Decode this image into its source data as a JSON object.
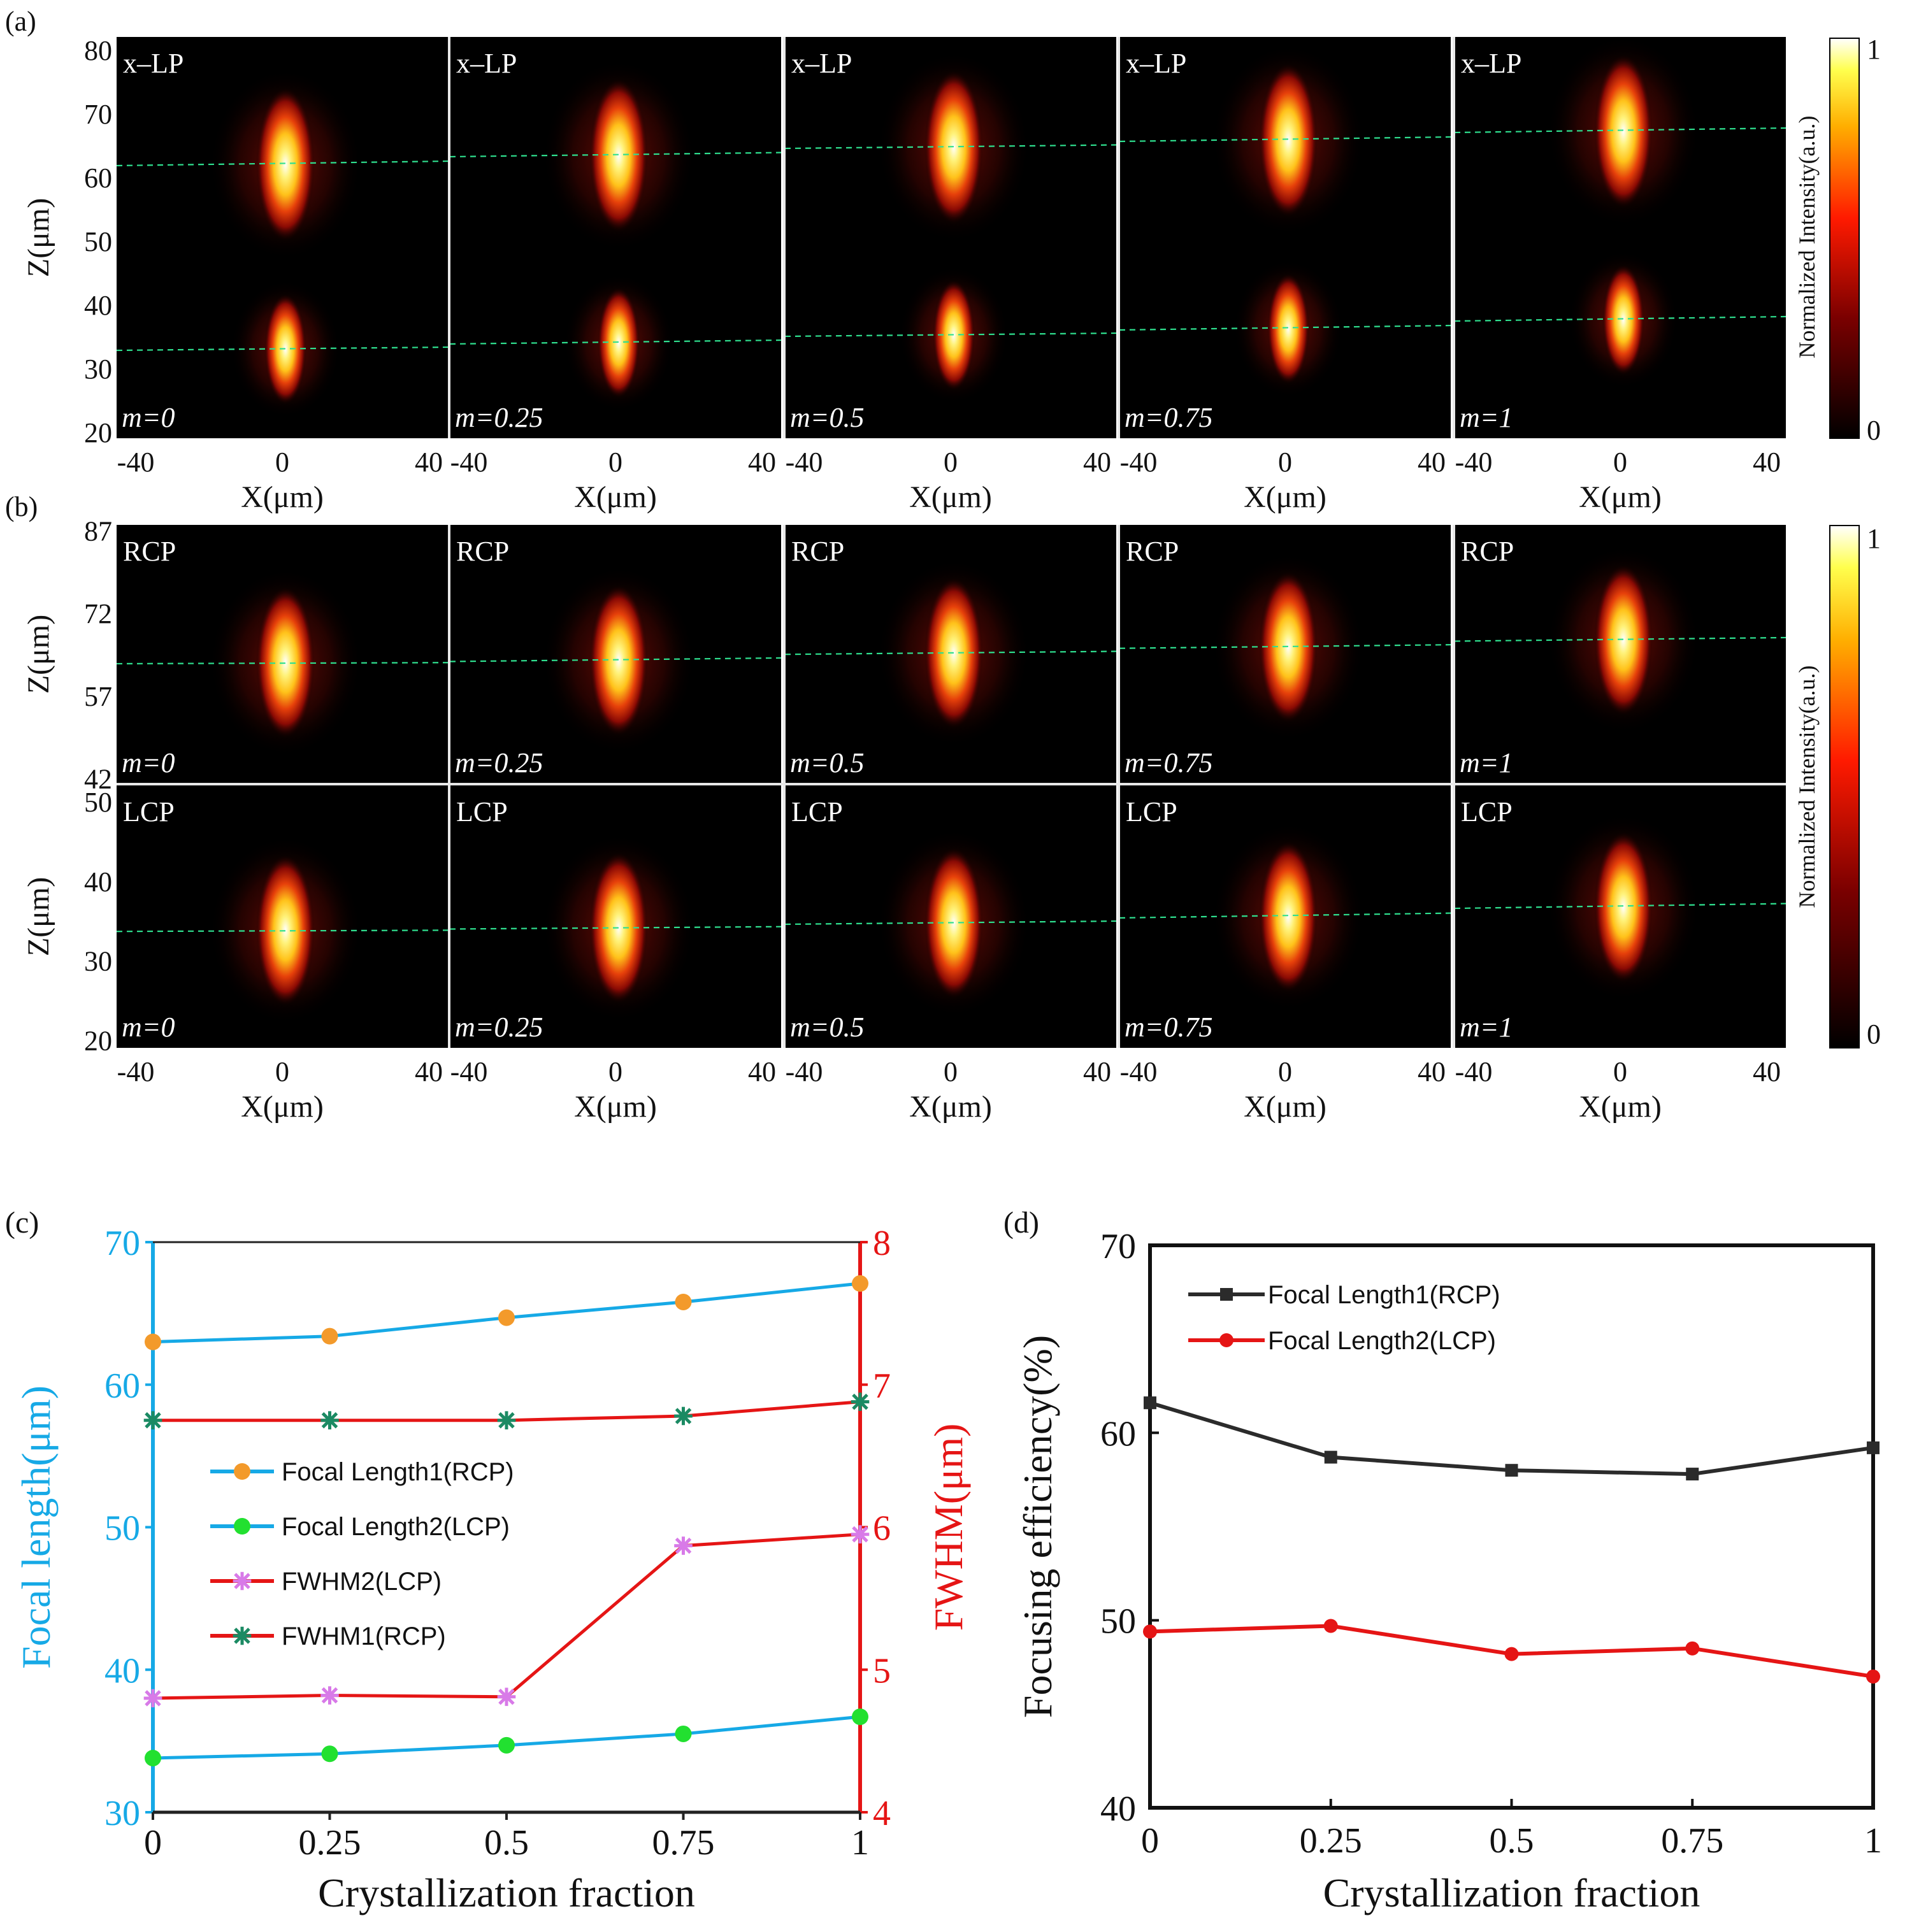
{
  "figure": {
    "panel_labels": {
      "a": "(a)",
      "b": "(b)",
      "c": "(c)",
      "d": "(d)"
    }
  },
  "colors": {
    "cyan": "#16a9e6",
    "red": "#e51515",
    "dark": "#2b2b2b",
    "orange": "#f39a2b",
    "green": "#22e030",
    "violet": "#d87ae8",
    "teal": "#1b8a63",
    "dashed": "#2fe08f",
    "text": "#111111",
    "white": "#ffffff"
  },
  "chart_data": [
    {
      "id": "a",
      "type": "heatmap",
      "polarization": "x–LP",
      "panels": [
        {
          "m_label": "m=0",
          "m": 0,
          "foci_z": [
            62.0,
            33.0
          ]
        },
        {
          "m_label": "m=0.25",
          "m": 0.25,
          "foci_z": [
            63.4,
            34.0
          ]
        },
        {
          "m_label": "m=0.5",
          "m": 0.5,
          "foci_z": [
            64.7,
            35.2
          ]
        },
        {
          "m_label": "m=0.75",
          "m": 0.75,
          "foci_z": [
            65.8,
            36.2
          ]
        },
        {
          "m_label": "m=1",
          "m": 1,
          "foci_z": [
            67.2,
            37.6
          ]
        }
      ],
      "xlabel": "X(μm)",
      "ylabel": "Z(μm)",
      "x_ticks": [
        "-40",
        "0",
        "40"
      ],
      "y_ticks": [
        "20",
        "30",
        "40",
        "50",
        "60",
        "70",
        "80"
      ],
      "xlim": [
        -45,
        45
      ],
      "ylim": [
        19,
        82
      ],
      "colorbar": {
        "label": "Normalized Intensity(a.u.)",
        "min_label": "0",
        "max_label": "1"
      }
    },
    {
      "id": "b-top",
      "type": "heatmap",
      "polarization": "RCP",
      "panels": [
        {
          "m_label": "m=0",
          "m": 0,
          "foci_z": [
            63.0
          ]
        },
        {
          "m_label": "m=0.25",
          "m": 0.25,
          "foci_z": [
            63.4
          ]
        },
        {
          "m_label": "m=0.5",
          "m": 0.5,
          "foci_z": [
            64.7
          ]
        },
        {
          "m_label": "m=0.75",
          "m": 0.75,
          "foci_z": [
            65.8
          ]
        },
        {
          "m_label": "m=1",
          "m": 1,
          "foci_z": [
            67.1
          ]
        }
      ],
      "ylabel": "Z(μm)",
      "y_ticks": [
        "42",
        "57",
        "72",
        "87"
      ],
      "ylim": [
        41,
        88
      ]
    },
    {
      "id": "b-bottom",
      "type": "heatmap",
      "polarization": "LCP",
      "panels": [
        {
          "m_label": "m=0",
          "m": 0,
          "foci_z": [
            33.8
          ]
        },
        {
          "m_label": "m=0.25",
          "m": 0.25,
          "foci_z": [
            34.1
          ]
        },
        {
          "m_label": "m=0.5",
          "m": 0.5,
          "foci_z": [
            34.7
          ]
        },
        {
          "m_label": "m=0.75",
          "m": 0.75,
          "foci_z": [
            35.5
          ]
        },
        {
          "m_label": "m=1",
          "m": 1,
          "foci_z": [
            36.7
          ]
        }
      ],
      "xlabel": "X(μm)",
      "ylabel": "Z(μm)",
      "x_ticks": [
        "-40",
        "0",
        "40"
      ],
      "y_ticks": [
        "20",
        "30",
        "40",
        "50"
      ],
      "xlim": [
        -45,
        45
      ],
      "ylim": [
        19,
        52
      ],
      "colorbar": {
        "label": "Normalized Intensity(a.u.)",
        "min_label": "0",
        "max_label": "1"
      }
    },
    {
      "id": "c",
      "type": "line",
      "x": [
        0,
        0.25,
        0.5,
        0.75,
        1
      ],
      "x_tick_labels": [
        "0",
        "0.25",
        "0.5",
        "0.75",
        "1"
      ],
      "xlabel": "Crystallization fraction",
      "ylabel_left": "Focal length(μm)",
      "ylabel_right": "FWHM(μm)",
      "ylim_left": [
        30,
        70
      ],
      "ylim_right": [
        4,
        8
      ],
      "y_ticks_left": [
        "30",
        "40",
        "50",
        "60",
        "70"
      ],
      "y_ticks_right": [
        "4",
        "5",
        "6",
        "7",
        "8"
      ],
      "series": [
        {
          "name": "Focal Length1(RCP)",
          "axis": "left",
          "values": [
            63.0,
            63.4,
            64.7,
            65.8,
            67.1
          ]
        },
        {
          "name": "Focal Length2(LCP)",
          "axis": "left",
          "values": [
            33.8,
            34.1,
            34.7,
            35.5,
            36.7
          ]
        },
        {
          "name": "FWHM2(LCP)",
          "axis": "right",
          "values": [
            4.8,
            4.82,
            4.81,
            5.87,
            5.95
          ]
        },
        {
          "name": "FWHM1(RCP)",
          "axis": "right",
          "values": [
            6.75,
            6.75,
            6.75,
            6.78,
            6.88
          ]
        }
      ]
    },
    {
      "id": "d",
      "type": "line",
      "x": [
        0,
        0.25,
        0.5,
        0.75,
        1
      ],
      "x_tick_labels": [
        "0",
        "0.25",
        "0.5",
        "0.75",
        "1"
      ],
      "xlabel": "Crystallization fraction",
      "ylabel": "Focusing efficiency(%)",
      "ylim": [
        40,
        70
      ],
      "y_ticks": [
        "40",
        "50",
        "60",
        "70"
      ],
      "series": [
        {
          "name": "Focal Length1(RCP)",
          "values": [
            61.6,
            58.7,
            58.0,
            57.8,
            59.2
          ]
        },
        {
          "name": "Focal Length2(LCP)",
          "values": [
            49.4,
            49.7,
            48.2,
            48.5,
            47.0
          ]
        }
      ]
    }
  ]
}
